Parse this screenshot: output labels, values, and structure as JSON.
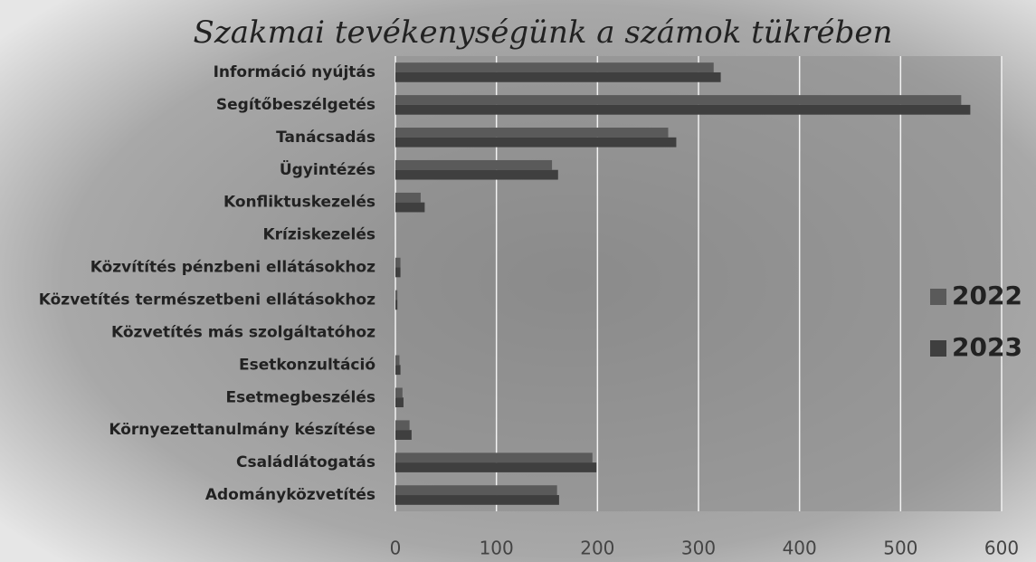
{
  "chart_data": {
    "type": "barh",
    "title": "Szakmai tevékenységünk a számok tükrében",
    "categories": [
      "Információ nyújtás",
      "Segítőbeszélgetés",
      "Tanácsadás",
      "Ügyintézés",
      "Konfliktuskezelés",
      "Kríziskezelés",
      "Közvítítés pénzbeni ellátásokhoz",
      "Közvetítés természetbeni ellátásokhoz",
      "Közvetítés más szolgáltatóhoz",
      "Esetkonzultáció",
      "Esetmegbeszélés",
      "Környezettanulmány készítése",
      "Családlátogatás",
      "Adományközvetítés"
    ],
    "series": [
      {
        "name": "2022",
        "color": "#5a5a5a",
        "values": [
          315,
          560,
          270,
          155,
          25,
          0,
          5,
          2,
          0,
          4,
          7,
          14,
          195,
          160
        ]
      },
      {
        "name": "2023",
        "color": "#3f3f3f",
        "values": [
          322,
          569,
          278,
          161,
          29,
          0,
          5,
          2,
          0,
          5,
          8,
          16,
          199,
          162
        ]
      }
    ],
    "xlim": [
      0,
      600
    ],
    "xticks": [
      0,
      100,
      200,
      300,
      400,
      500,
      600
    ],
    "grid": true,
    "legend": "right"
  }
}
